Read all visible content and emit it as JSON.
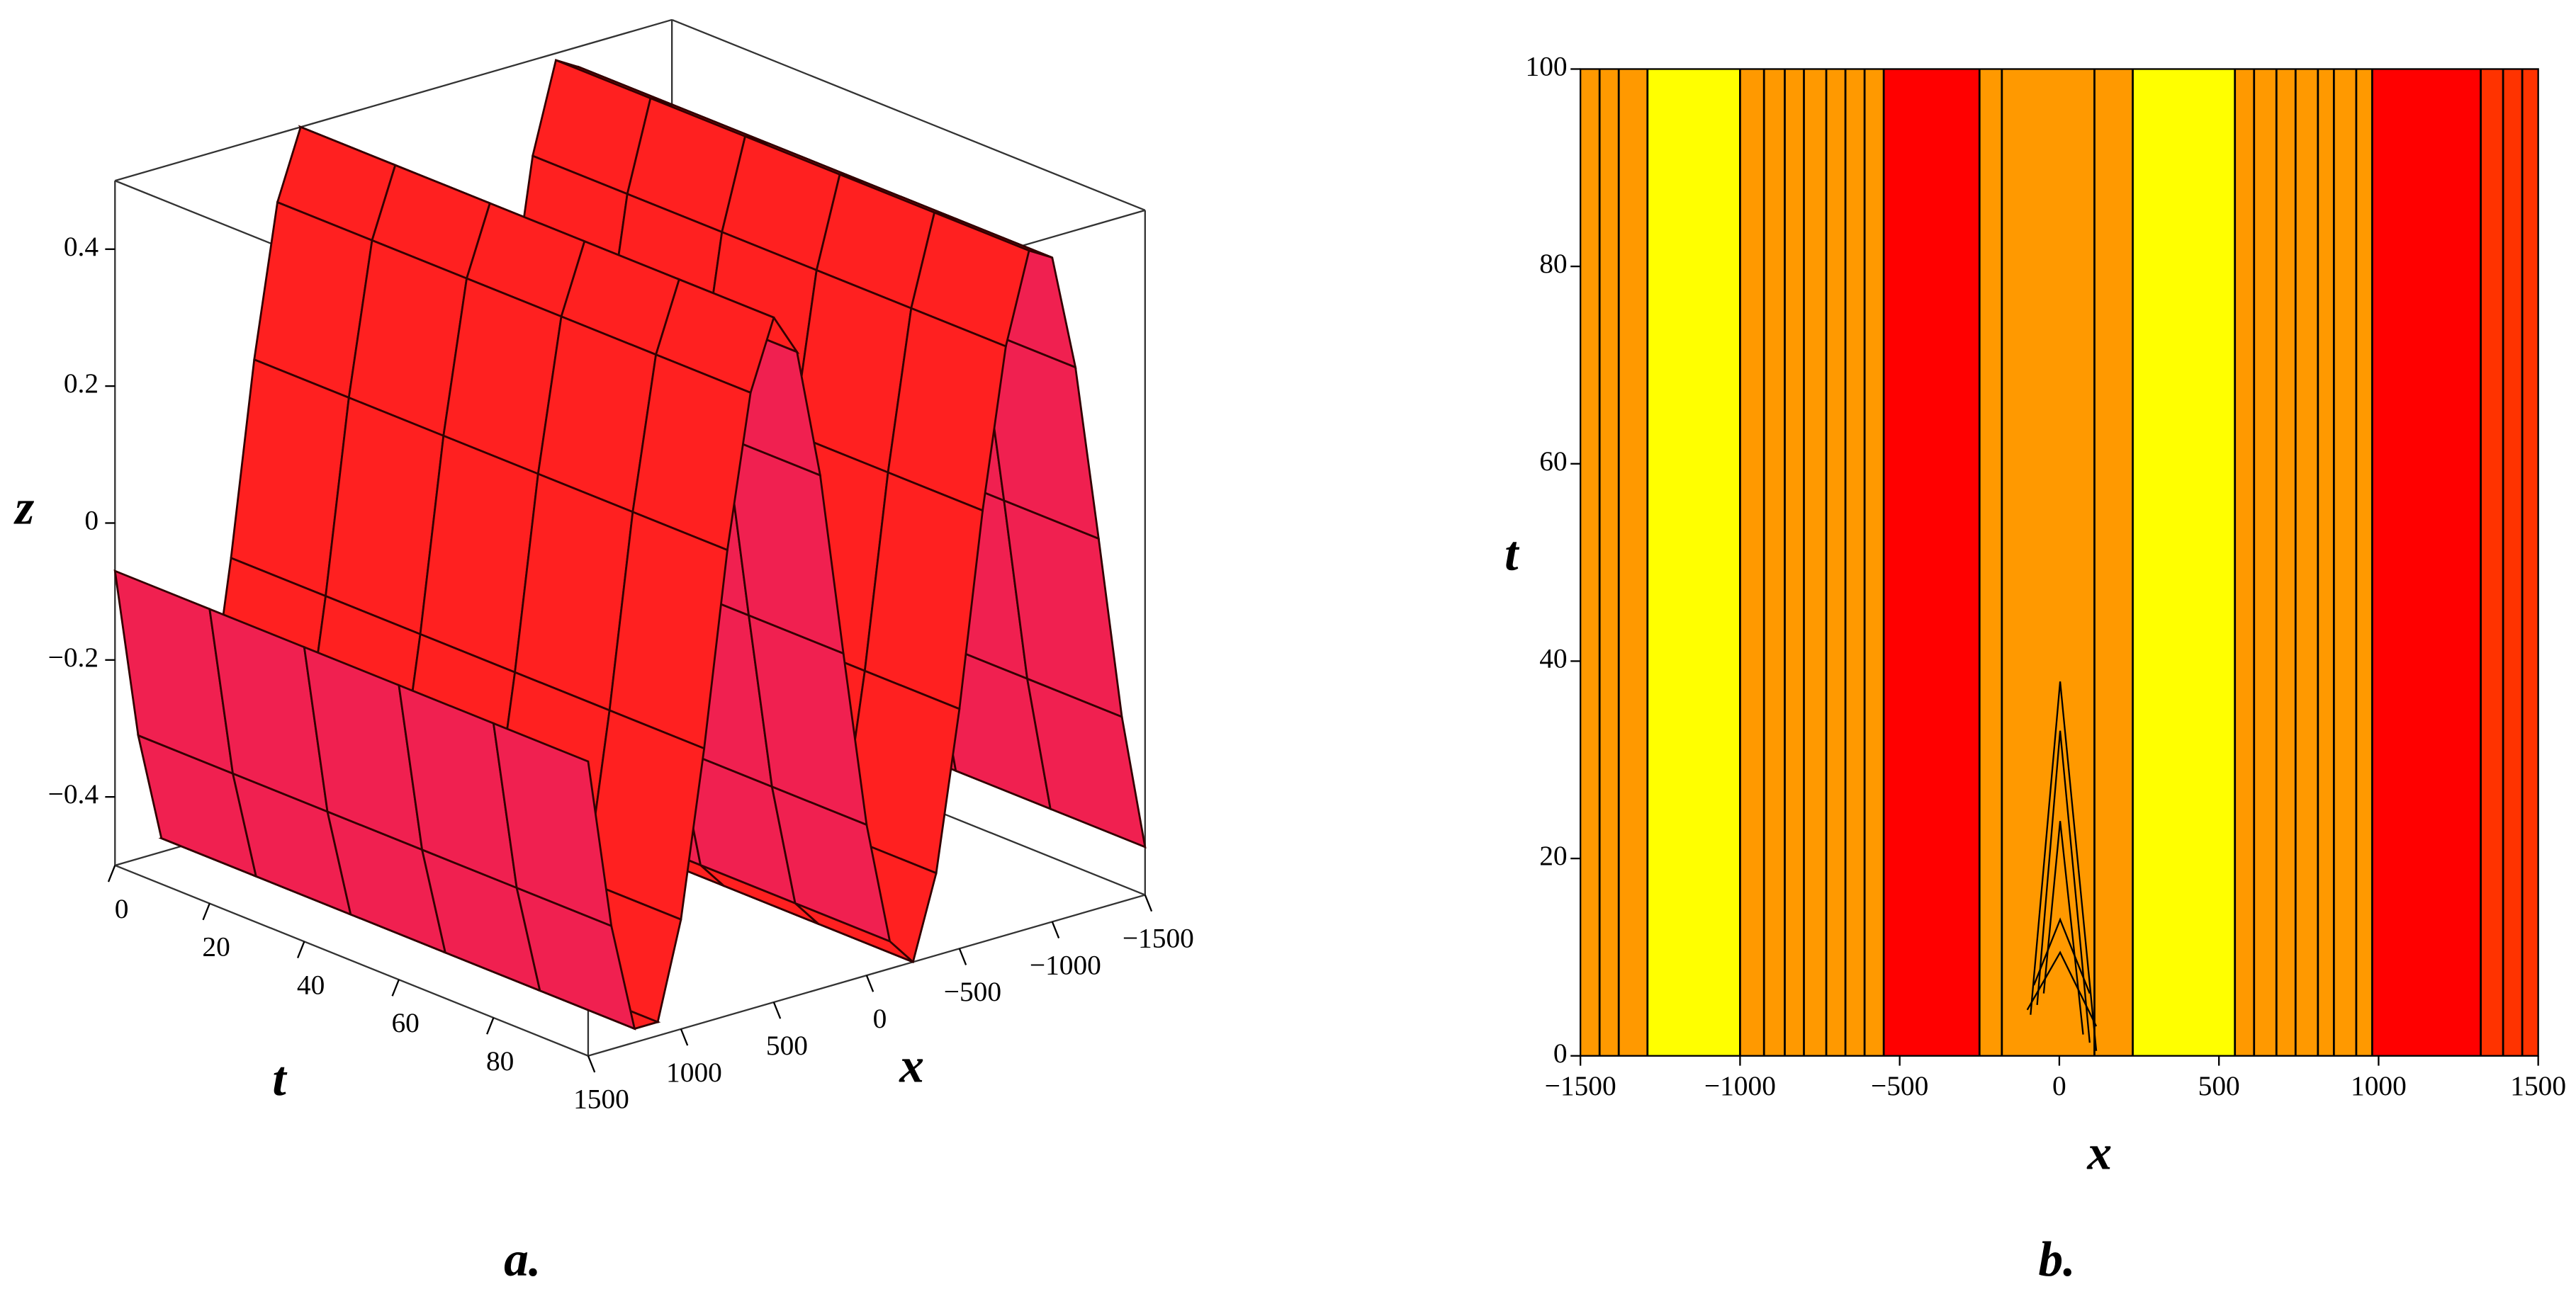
{
  "chart_data": [
    {
      "type": "surface",
      "caption": "a.",
      "xlabel": "x",
      "ylabel": "t",
      "zlabel": "z",
      "color": "#ff2020",
      "x": [
        -1500,
        -1375,
        -1250,
        -1125,
        -1000,
        -875,
        -750,
        -625,
        -500,
        -375,
        -250,
        -125,
        0,
        125,
        250,
        375,
        500,
        625,
        750,
        875,
        1000,
        1125,
        1250,
        1375,
        1500
      ],
      "values": [
        -0.43,
        -0.23,
        0.04,
        0.3,
        0.47,
        0.49,
        0.36,
        0.13,
        -0.15,
        -0.38,
        -0.5,
        -0.46,
        -0.28,
        -0.02,
        0.25,
        0.44,
        0.5,
        0.4,
        0.18,
        -0.1,
        -0.34,
        -0.48,
        -0.48,
        -0.32,
        -0.07
      ],
      "xlim": [
        -1500,
        1500
      ],
      "ylim": [
        0,
        100
      ],
      "zlim": [
        -0.5,
        0.5
      ],
      "xticks": [
        1500,
        1000,
        500,
        0,
        {
          "value": -500,
          "label": "−500"
        },
        {
          "value": -1000,
          "label": "−1000"
        },
        {
          "value": -1500,
          "label": "−1500"
        }
      ],
      "yticks": [
        0,
        20,
        40,
        60,
        80
      ],
      "zticks": [
        {
          "value": -0.4,
          "label": "−0.4"
        },
        {
          "value": -0.2,
          "label": "−0.2"
        },
        0,
        0.2,
        0.4
      ]
    },
    {
      "type": "contour",
      "caption": "b.",
      "xlabel": "x",
      "ylabel": "t",
      "xlim": [
        -1500,
        1500
      ],
      "ylim": [
        0,
        100
      ],
      "xticks": [
        {
          "value": -1500,
          "label": "−1500"
        },
        {
          "value": -1000,
          "label": "−1000"
        },
        {
          "value": -500,
          "label": "−500"
        },
        0,
        500,
        1000,
        1500
      ],
      "yticks": [
        0,
        20,
        40,
        60,
        80,
        100
      ],
      "bands": [
        {
          "from": -1500,
          "to": -1290,
          "color": "#ff9900"
        },
        {
          "from": -1290,
          "to": -1000,
          "color": "#ffff00"
        },
        {
          "from": -1000,
          "to": -550,
          "color": "#ff9900"
        },
        {
          "from": -550,
          "to": -250,
          "color": "#ff0000"
        },
        {
          "from": -250,
          "to": 230,
          "color": "#ff9900"
        },
        {
          "from": 230,
          "to": 550,
          "color": "#ffff00"
        },
        {
          "from": 550,
          "to": 980,
          "color": "#ff9900"
        },
        {
          "from": 980,
          "to": 1320,
          "color": "#ff0000"
        },
        {
          "from": 1320,
          "to": 1500,
          "color": "#ff3300"
        }
      ],
      "contour_x": [
        -1440,
        -1380,
        -1290,
        -1000,
        -925,
        -860,
        -800,
        -730,
        -670,
        -610,
        -550,
        -250,
        -180,
        110,
        230,
        550,
        610,
        680,
        740,
        810,
        860,
        930,
        980,
        1320,
        1390,
        1450
      ]
    }
  ]
}
